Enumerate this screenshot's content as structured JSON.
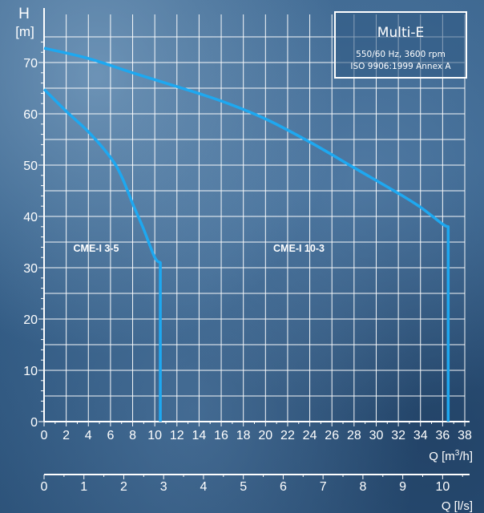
{
  "chart_data": {
    "type": "line",
    "y_axis": {
      "label_symbol": "H",
      "label_unit": "[m]",
      "range": [
        0,
        75
      ],
      "ticks": [
        0,
        10,
        20,
        30,
        40,
        50,
        60,
        70
      ]
    },
    "x_axis_flow_m3h": {
      "label": "Q [m³/h]",
      "label_prefix": "Q [m",
      "label_sup": "3",
      "label_suffix": "/h]",
      "range": [
        0,
        38
      ],
      "ticks": [
        0,
        2,
        4,
        6,
        8,
        10,
        12,
        14,
        16,
        18,
        20,
        22,
        24,
        26,
        28,
        30,
        32,
        34,
        36,
        38
      ]
    },
    "x_axis_flow_ls": {
      "label": "Q [l/s]",
      "range": [
        0,
        10.56
      ],
      "ticks": [
        0,
        1,
        2,
        3,
        4,
        5,
        6,
        7,
        8,
        9,
        10
      ]
    },
    "grid": true,
    "legend": {
      "placement": "top-right",
      "title": "Multi-E",
      "line1": "550/60 Hz, 3600 rpm",
      "line2": "ISO 9906:1999 Annex A"
    },
    "series": [
      {
        "name": "CME-I 3-5",
        "points": [
          [
            0,
            64.8
          ],
          [
            2,
            60.5
          ],
          [
            4,
            56.5
          ],
          [
            6,
            51.5
          ],
          [
            7,
            47.8
          ],
          [
            8,
            42.5
          ],
          [
            9,
            37.5
          ],
          [
            10,
            32
          ],
          [
            10.5,
            31
          ],
          [
            10.5,
            0
          ]
        ]
      },
      {
        "name": "CME-I 10-3",
        "points": [
          [
            0,
            72.8
          ],
          [
            4,
            70.8
          ],
          [
            8,
            68
          ],
          [
            12,
            65.3
          ],
          [
            16,
            62.5
          ],
          [
            20,
            59
          ],
          [
            24,
            54.5
          ],
          [
            28,
            49.5
          ],
          [
            32,
            44.5
          ],
          [
            34,
            41.8
          ],
          [
            36,
            38.5
          ],
          [
            36.5,
            38
          ],
          [
            36.5,
            0
          ]
        ]
      }
    ],
    "colors": {
      "curve": "#1ea8f0",
      "grid": "#ffffff",
      "text": "#ffffff"
    }
  }
}
